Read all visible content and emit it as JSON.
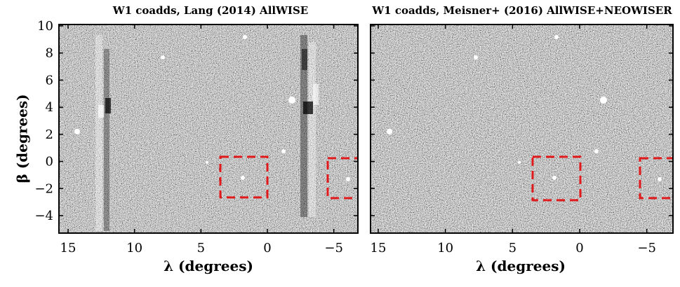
{
  "figure": {
    "ylabel": "β (degrees)",
    "panels": [
      {
        "title": "W1 coadds, Lang (2014) AllWISE",
        "xlabel": "λ (degrees)",
        "x_ticks": [
          "15",
          "10",
          "5",
          "0",
          "−5"
        ],
        "y_ticks": [
          "10",
          "8",
          "6",
          "4",
          "2",
          "0",
          "−2",
          "−4"
        ]
      },
      {
        "title": "W1 coadds, Meisner+ (2016) AllWISE+NEOWISER",
        "xlabel": "λ (degrees)",
        "x_ticks": [
          "15",
          "10",
          "5",
          "0",
          "−5"
        ]
      }
    ]
  },
  "colors": {
    "background_noise": "#8c8c8c",
    "highlight_box": "#e0191b",
    "axes": "#000000"
  }
}
